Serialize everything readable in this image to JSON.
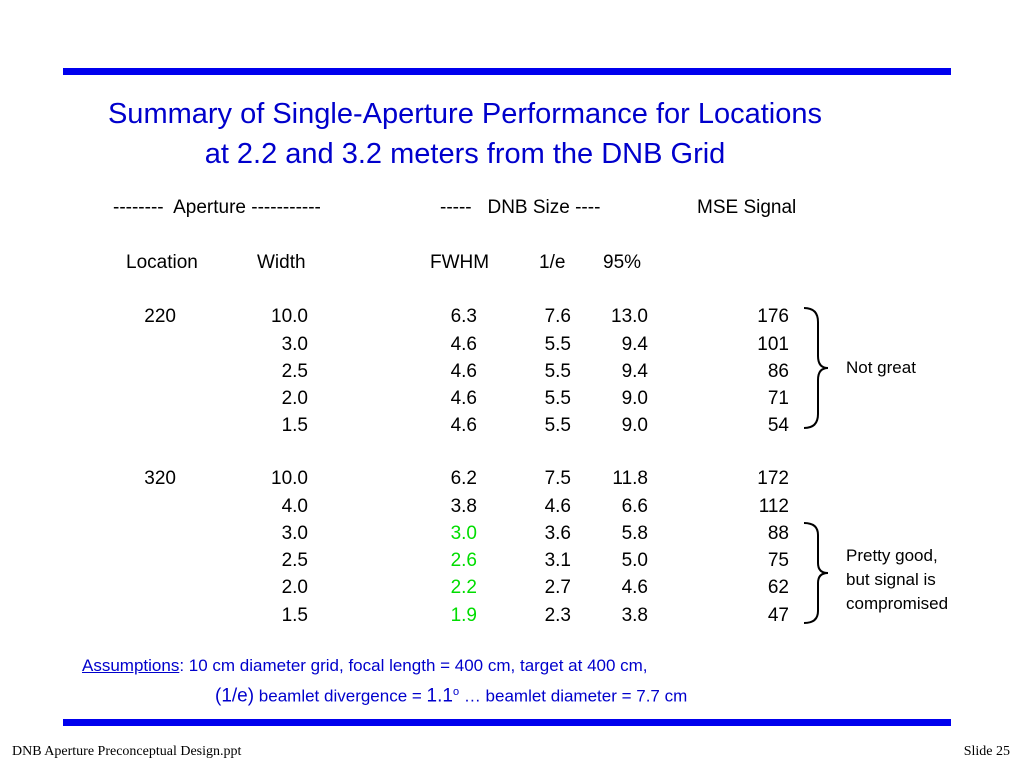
{
  "title": {
    "line1": "Summary of Single-Aperture Performance for Locations",
    "line2": "at 2.2 and 3.2 meters from the DNB Grid"
  },
  "group_headers": {
    "aperture": "--------  Aperture -----------",
    "dnb_size": "-----   DNB Size ----",
    "mse_signal": "MSE Signal"
  },
  "column_headers": {
    "location": "Location",
    "width": "Width",
    "fwhm": "FWHM",
    "one_e": "1/e",
    "p95": "95%"
  },
  "table": {
    "rows": [
      {
        "location": "220",
        "width": "10.0",
        "fwhm": "6.3",
        "one_e": "7.6",
        "p95": "13.0",
        "mse": "176",
        "fwhm_highlight": false
      },
      {
        "location": "",
        "width": "3.0",
        "fwhm": "4.6",
        "one_e": "5.5",
        "p95": "9.4",
        "mse": "101",
        "fwhm_highlight": false
      },
      {
        "location": "",
        "width": "2.5",
        "fwhm": "4.6",
        "one_e": "5.5",
        "p95": "9.4",
        "mse": "86",
        "fwhm_highlight": false
      },
      {
        "location": "",
        "width": "2.0",
        "fwhm": "4.6",
        "one_e": "5.5",
        "p95": "9.0",
        "mse": "71",
        "fwhm_highlight": false
      },
      {
        "location": "",
        "width": "1.5",
        "fwhm": "4.6",
        "one_e": "5.5",
        "p95": "9.0",
        "mse": "54",
        "fwhm_highlight": false
      },
      {
        "location": "320",
        "width": "10.0",
        "fwhm": "6.2",
        "one_e": "7.5",
        "p95": "11.8",
        "mse": "172",
        "fwhm_highlight": false
      },
      {
        "location": "",
        "width": "4.0",
        "fwhm": "3.8",
        "one_e": "4.6",
        "p95": "6.6",
        "mse": "112",
        "fwhm_highlight": false
      },
      {
        "location": "",
        "width": "3.0",
        "fwhm": "3.0",
        "one_e": "3.6",
        "p95": "5.8",
        "mse": "88",
        "fwhm_highlight": true
      },
      {
        "location": "",
        "width": "2.5",
        "fwhm": "2.6",
        "one_e": "3.1",
        "p95": "5.0",
        "mse": "75",
        "fwhm_highlight": true
      },
      {
        "location": "",
        "width": "2.0",
        "fwhm": "2.2",
        "one_e": "2.7",
        "p95": "4.6",
        "mse": "62",
        "fwhm_highlight": true
      },
      {
        "location": "",
        "width": "1.5",
        "fwhm": "1.9",
        "one_e": "2.3",
        "p95": "3.8",
        "mse": "47",
        "fwhm_highlight": true
      }
    ]
  },
  "annotations": {
    "not_great": "Not great",
    "pretty_good": [
      "Pretty good,",
      "but signal is",
      "compromised"
    ]
  },
  "assumptions": {
    "label": "Assumptions",
    "line1": ":  10 cm diameter grid, focal length = 400 cm, target at 400 cm,",
    "line2_a": "(1/e)",
    "line2_b": " beamlet divergence = ",
    "line2_c": "1.1",
    "line2_deg": "o",
    "line2_d": " … beamlet diameter = 7.7 cm"
  },
  "footer": {
    "left": "DNB Aperture Preconceptual Design.ppt",
    "right": "Slide 25"
  },
  "colors": {
    "title": "#0000cc",
    "rule": "#0000ee",
    "highlight": "#00dd00"
  }
}
